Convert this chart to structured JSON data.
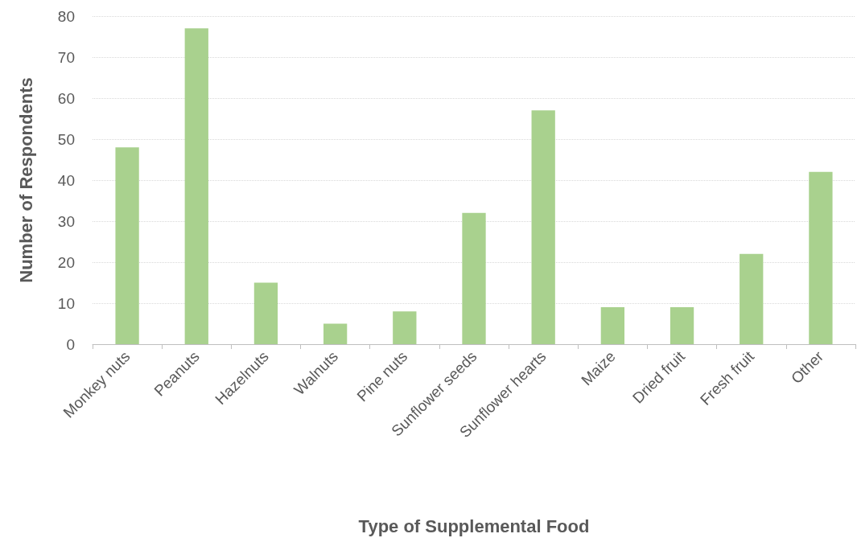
{
  "chart_data": {
    "type": "bar",
    "xlabel": "Type of Supplemental Food",
    "ylabel": "Number of Respondents",
    "categories": [
      "Monkey nuts",
      "Peanuts",
      "Hazelnuts",
      "Walnuts",
      "Pine nuts",
      "Sunflower seeds",
      "Sunflower hearts",
      "Maize",
      "Dried fruit",
      "Fresh fruit",
      "Other"
    ],
    "values": [
      48,
      77,
      15,
      5,
      8,
      32,
      57,
      9,
      9,
      22,
      42
    ],
    "color": "#a9d18e",
    "ylim": [
      0,
      80
    ],
    "yticks": [
      0,
      10,
      20,
      30,
      40,
      50,
      60,
      70,
      80
    ],
    "grid": "y"
  }
}
